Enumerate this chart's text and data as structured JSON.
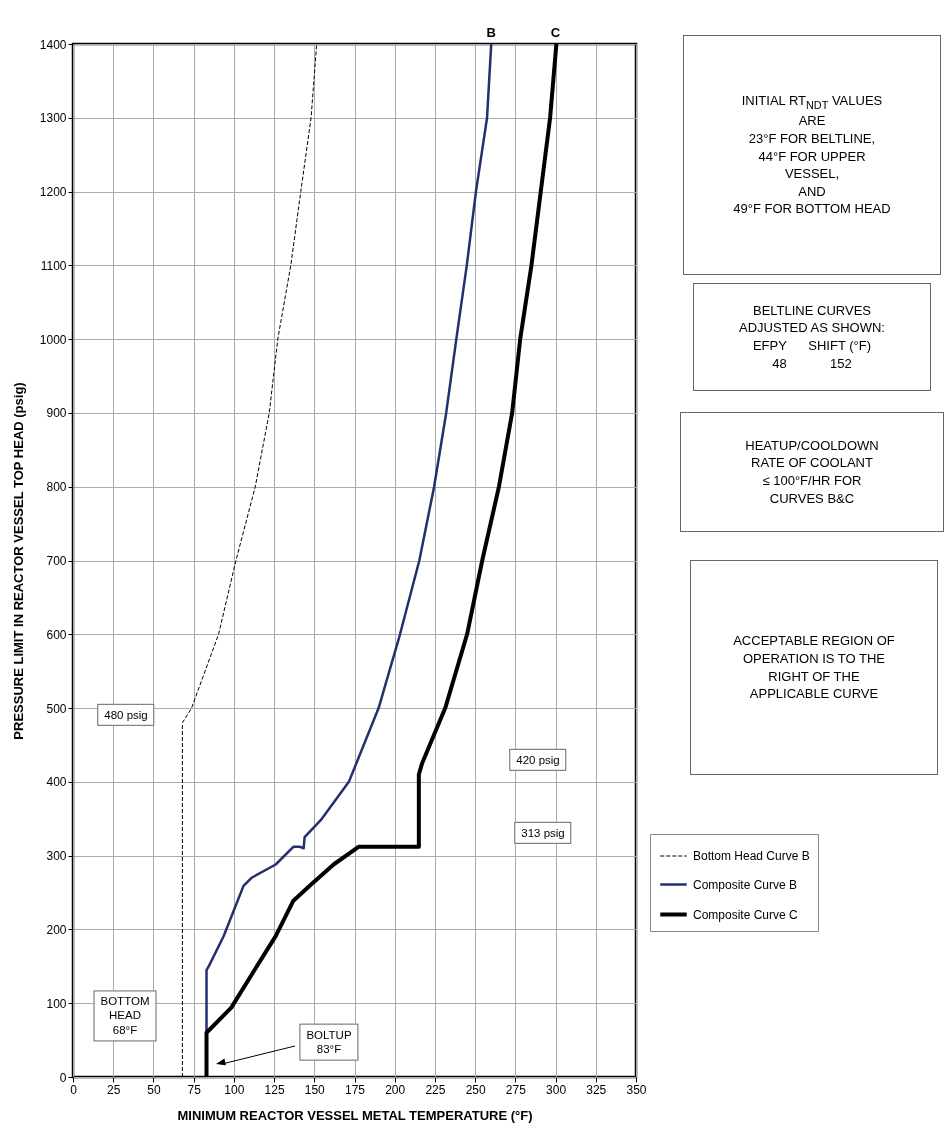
{
  "chart_data": {
    "type": "line",
    "xlabel": "MINIMUM REACTOR VESSEL METAL TEMPERATURE (°F)",
    "ylabel": "PRESSURE LIMIT IN REACTOR VESSEL TOP HEAD (psig)",
    "xlim": [
      0,
      350
    ],
    "xticks": [
      0,
      25,
      50,
      75,
      100,
      125,
      150,
      175,
      200,
      225,
      250,
      275,
      300,
      325,
      350
    ],
    "ylim": [
      0,
      1400
    ],
    "yticks": [
      0,
      100,
      200,
      300,
      400,
      500,
      600,
      700,
      800,
      900,
      1000,
      1100,
      1200,
      1300,
      1400
    ],
    "grid": true,
    "legend": "right",
    "series": [
      {
        "name": "Bottom Head Curve B",
        "color": "#000000",
        "line_style": "dashed",
        "x": [
          68,
          68,
          73.7,
          90.5,
          101.3,
          113.3,
          122,
          127.3,
          135.4,
          141.6,
          148,
          151.5
        ],
        "values": [
          0,
          480,
          500,
          600,
          700,
          800,
          900,
          1000,
          1100,
          1200,
          1300,
          1400
        ]
      },
      {
        "name": "Composite Curve B",
        "color": "#232f6e",
        "line_style": "solid",
        "x": [
          83,
          83,
          84.6,
          93.7,
          106,
          111,
          126,
          137,
          141,
          143.4,
          144,
          154,
          171.5,
          190,
          203.3,
          215.3,
          224.5,
          232,
          238.3,
          244.8,
          250.5,
          257.4,
          260
        ],
        "values": [
          0,
          145,
          151,
          191,
          259,
          270,
          288,
          312,
          312,
          310,
          325,
          348,
          400,
          500,
          600,
          700,
          800,
          900,
          1000,
          1100,
          1200,
          1300,
          1400
        ]
      },
      {
        "name": "Composite Curve C",
        "color": "#000000",
        "line_style": "solid",
        "x": [
          83,
          83,
          98.4,
          112,
          126,
          137,
          148,
          162,
          177.5,
          215,
          215,
          217,
          231.4,
          245,
          254.4,
          264.8,
          273,
          278,
          285,
          290.8,
          296.6,
          300.5
        ],
        "values": [
          0,
          60,
          94,
          142,
          191,
          239,
          261,
          288,
          312,
          312,
          410,
          425,
          500,
          600,
          700,
          800,
          900,
          1000,
          1100,
          1200,
          1300,
          1400
        ]
      }
    ],
    "annotations": [
      {
        "text": "B",
        "x": 260,
        "y": 1400
      },
      {
        "text": "C",
        "x": 300,
        "y": 1400
      },
      "INITIAL RT$_{NDT}$ VALUES\nARE\n23°F FOR BELTLINE,\n44°F FOR UPPER\nVESSEL,\nAND\n49°F FOR BOTTOM HEAD",
      "BELTLINE CURVES\nADJUSTED AS SHOWN:\nEFPY      SHIFT (°F)\n48            152",
      "HEATUP/COOLDOWN\nRATE OF COOLANT\n≤ 100°F/HR FOR\nCURVES B&C",
      "ACCEPTABLE REGION OF\nOPERATION IS TO THE\nRIGHT OF THE\nAPPLICABLE CURVE",
      "480 psig",
      "420 psig",
      "313 psig",
      "BOTTOM\nHEAD\n68°F",
      "BOLTUP\n83°F"
    ]
  }
}
